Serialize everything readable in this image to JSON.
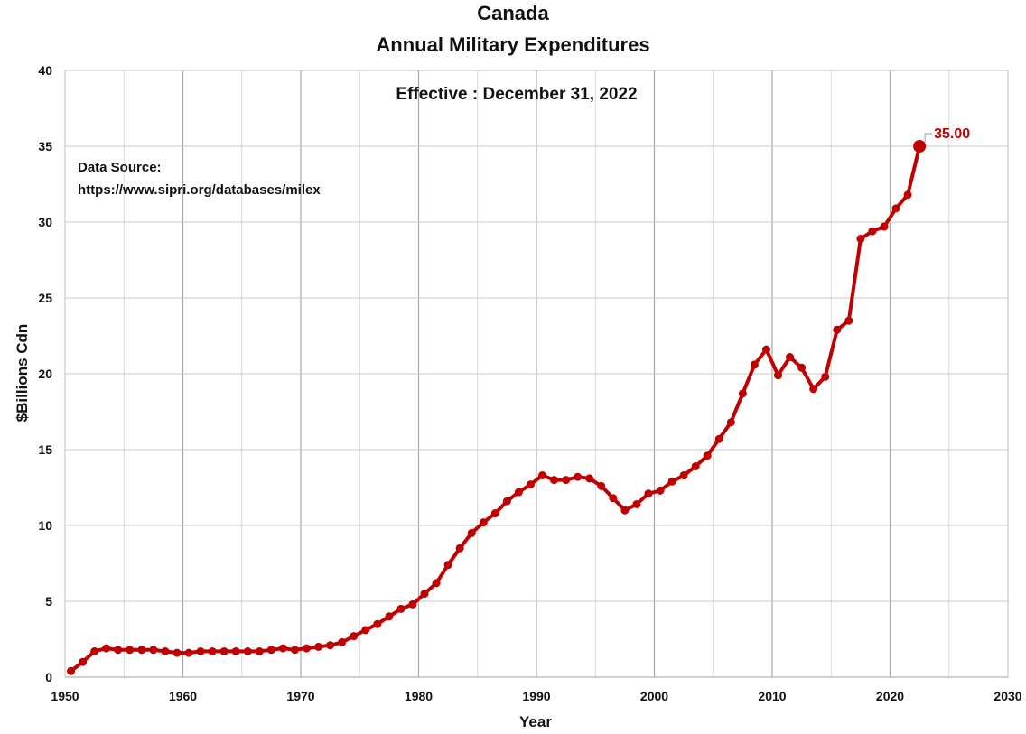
{
  "chart_data": {
    "type": "line",
    "title": "Canada",
    "subtitle": "Annual Military Expenditures",
    "annotation": "Effective : December 31, 2022",
    "source_label": "Data Source:",
    "source_url": "https://www.sipri.org/databases/milex",
    "xlabel": "Year",
    "ylabel": "$Billions Cdn",
    "xlim": [
      1950,
      2030
    ],
    "ylim": [
      0,
      40
    ],
    "x_ticks": [
      1950,
      1960,
      1970,
      1980,
      1990,
      2000,
      2010,
      2020,
      2030
    ],
    "y_ticks": [
      0,
      5,
      10,
      15,
      20,
      25,
      30,
      35,
      40
    ],
    "grid": true,
    "line_color": "#C00000",
    "grid_color": "#bfbfbf",
    "last_point_label": "35.00",
    "series": [
      {
        "x": [
          1950,
          1951,
          1952,
          1953,
          1954,
          1955,
          1956,
          1957,
          1958,
          1959,
          1960,
          1961,
          1962,
          1963,
          1964,
          1965,
          1966,
          1967,
          1968,
          1969,
          1970,
          1971,
          1972,
          1973,
          1974,
          1975,
          1976,
          1977,
          1978,
          1979,
          1980,
          1981,
          1982,
          1983,
          1984,
          1985,
          1986,
          1987,
          1988,
          1989,
          1990,
          1991,
          1992,
          1993,
          1994,
          1995,
          1996,
          1997,
          1998,
          1999,
          2000,
          2001,
          2002,
          2003,
          2004,
          2005,
          2006,
          2007,
          2008,
          2009,
          2010,
          2011,
          2012,
          2013,
          2014,
          2015,
          2016,
          2017,
          2018,
          2019,
          2020,
          2021,
          2022
        ],
        "values": [
          0.4,
          1.0,
          1.7,
          1.9,
          1.8,
          1.8,
          1.8,
          1.8,
          1.7,
          1.6,
          1.6,
          1.7,
          1.7,
          1.7,
          1.7,
          1.7,
          1.7,
          1.8,
          1.9,
          1.8,
          1.9,
          2.0,
          2.1,
          2.3,
          2.7,
          3.1,
          3.5,
          4.0,
          4.5,
          4.8,
          5.5,
          6.2,
          7.4,
          8.5,
          9.5,
          10.2,
          10.8,
          11.6,
          12.2,
          12.7,
          13.3,
          13.0,
          13.0,
          13.2,
          13.1,
          12.6,
          11.8,
          11.0,
          11.4,
          12.1,
          12.3,
          12.9,
          13.3,
          13.9,
          14.6,
          15.7,
          16.8,
          18.7,
          20.6,
          21.6,
          19.9,
          21.1,
          20.4,
          19.0,
          19.8,
          22.9,
          23.5,
          28.9,
          29.4,
          29.7,
          30.9,
          31.8,
          35.0
        ]
      }
    ]
  }
}
